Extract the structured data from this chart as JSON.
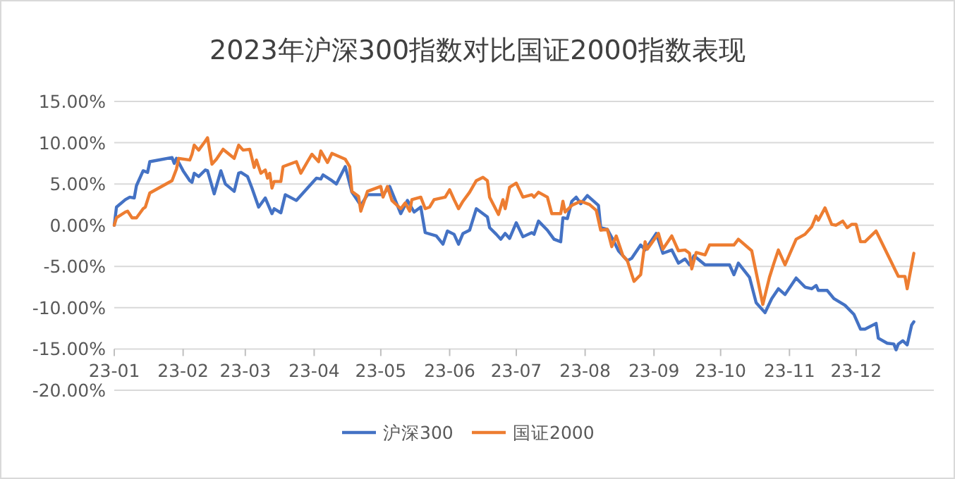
{
  "chart_data": {
    "type": "line",
    "title": "2023年沪深300指数对比国证2000指数表现",
    "xlim": [
      "2023-01-01",
      "2024-01-05"
    ],
    "xticks": [
      {
        "value": "2023-01-01",
        "label": "23-01"
      },
      {
        "value": "2023-02-01",
        "label": "23-02"
      },
      {
        "value": "2023-03-01",
        "label": "23-03"
      },
      {
        "value": "2023-04-01",
        "label": "23-04"
      },
      {
        "value": "2023-05-01",
        "label": "23-05"
      },
      {
        "value": "2023-06-01",
        "label": "23-06"
      },
      {
        "value": "2023-07-01",
        "label": "23-07"
      },
      {
        "value": "2023-08-01",
        "label": "23-08"
      },
      {
        "value": "2023-09-01",
        "label": "23-09"
      },
      {
        "value": "2023-10-01",
        "label": "23-10"
      },
      {
        "value": "2023-11-01",
        "label": "23-11"
      },
      {
        "value": "2023-12-01",
        "label": "23-12"
      }
    ],
    "ylim": [
      -20,
      15
    ],
    "yticks": [
      {
        "value": -20,
        "label": "-20.00%"
      },
      {
        "value": -15,
        "label": "-15.00%"
      },
      {
        "value": -10,
        "label": "-10.00%"
      },
      {
        "value": -5,
        "label": "-5.00%"
      },
      {
        "value": 0,
        "label": "0.00%"
      },
      {
        "value": 5,
        "label": "5.00%"
      },
      {
        "value": 10,
        "label": "10.00%"
      },
      {
        "value": 15,
        "label": "15.00%"
      }
    ],
    "grid": "y",
    "legend": "bottom",
    "marker": "none",
    "line_style": "solid",
    "series": [
      {
        "name": "沪深300",
        "color": "#4472c4",
        "x": [
          "2023-01-01",
          "2023-01-02",
          "2023-01-06",
          "2023-01-08",
          "2023-01-10",
          "2023-01-11",
          "2023-01-14",
          "2023-01-16",
          "2023-01-17",
          "2023-01-27",
          "2023-01-28",
          "2023-01-29",
          "2023-02-01",
          "2023-02-04",
          "2023-02-05",
          "2023-02-06",
          "2023-02-08",
          "2023-02-11",
          "2023-02-12",
          "2023-02-15",
          "2023-02-18",
          "2023-02-20",
          "2023-02-24",
          "2023-02-26",
          "2023-02-27",
          "2023-03-02",
          "2023-03-04",
          "2023-03-07",
          "2023-03-10",
          "2023-03-13",
          "2023-03-14",
          "2023-03-17",
          "2023-03-19",
          "2023-03-24",
          "2023-03-27",
          "2023-04-02",
          "2023-04-04",
          "2023-04-05",
          "2023-04-09",
          "2023-04-11",
          "2023-04-15",
          "2023-04-18",
          "2023-04-22",
          "2023-04-25",
          "2023-05-02",
          "2023-05-05",
          "2023-05-10",
          "2023-05-13",
          "2023-05-16",
          "2023-05-19",
          "2023-05-21",
          "2023-05-26",
          "2023-05-29",
          "2023-05-31",
          "2023-06-03",
          "2023-06-05",
          "2023-06-07",
          "2023-06-10",
          "2023-06-13",
          "2023-06-18",
          "2023-06-19",
          "2023-06-22",
          "2023-06-24",
          "2023-06-26",
          "2023-06-28",
          "2023-07-01",
          "2023-07-04",
          "2023-07-08",
          "2023-07-09",
          "2023-07-11",
          "2023-07-15",
          "2023-07-18",
          "2023-07-21",
          "2023-07-22",
          "2023-07-24",
          "2023-07-26",
          "2023-07-28",
          "2023-07-30",
          "2023-08-02",
          "2023-08-07",
          "2023-08-08",
          "2023-08-11",
          "2023-08-14",
          "2023-08-16",
          "2023-08-20",
          "2023-08-22",
          "2023-08-26",
          "2023-08-28",
          "2023-09-02",
          "2023-09-05",
          "2023-09-09",
          "2023-09-12",
          "2023-09-15",
          "2023-09-17",
          "2023-09-19",
          "2023-09-24",
          "2023-10-05",
          "2023-10-07",
          "2023-10-09",
          "2023-10-14",
          "2023-10-17",
          "2023-10-21",
          "2023-10-24",
          "2023-10-27",
          "2023-10-30",
          "2023-11-04",
          "2023-11-08",
          "2023-11-11",
          "2023-11-13",
          "2023-11-14",
          "2023-11-18",
          "2023-11-21",
          "2023-11-26",
          "2023-11-30",
          "2023-12-03",
          "2023-12-05",
          "2023-12-10",
          "2023-12-11",
          "2023-12-15",
          "2023-12-18",
          "2023-12-19",
          "2023-12-20",
          "2023-12-22",
          "2023-12-24",
          "2023-12-26",
          "2023-12-27"
        ],
        "values": [
          0,
          2.2,
          3.1,
          3.4,
          3.3,
          4.8,
          6.6,
          6.4,
          7.7,
          8.2,
          7.5,
          8.1,
          6.6,
          5.4,
          5.2,
          6.3,
          5.9,
          6.7,
          6.6,
          3.8,
          6.6,
          5.0,
          4.1,
          6.3,
          6.4,
          5.9,
          4.5,
          2.2,
          3.3,
          1.4,
          2.0,
          1.5,
          3.7,
          3.0,
          3.9,
          5.7,
          5.6,
          6.1,
          5.4,
          5.0,
          7.1,
          4.0,
          2.4,
          3.7,
          3.7,
          4.7,
          1.4,
          3.0,
          1.6,
          2.2,
          -0.9,
          -1.3,
          -2.3,
          -0.7,
          -1.1,
          -2.3,
          -1.0,
          -0.6,
          2.0,
          1.0,
          -0.3,
          -1.1,
          -1.7,
          -1.0,
          -1.6,
          0.3,
          -1.4,
          -0.9,
          -1.1,
          0.5,
          -0.6,
          -1.7,
          -2.0,
          0.9,
          0.8,
          2.9,
          3.4,
          2.6,
          3.6,
          2.4,
          -0.3,
          -0.5,
          -2.0,
          -3.1,
          -4.3,
          -4.0,
          -2.4,
          -3.0,
          -1.0,
          -3.4,
          -3.0,
          -4.6,
          -4.1,
          -4.8,
          -3.7,
          -4.8,
          -4.8,
          -6.0,
          -4.6,
          -6.3,
          -9.4,
          -10.6,
          -8.9,
          -7.7,
          -8.4,
          -6.4,
          -7.5,
          -7.7,
          -7.3,
          -7.9,
          -7.9,
          -8.9,
          -9.7,
          -10.8,
          -12.6,
          -12.6,
          -11.9,
          -13.7,
          -14.3,
          -14.4,
          -15.1,
          -14.4,
          -14.0,
          -14.5,
          -12.1,
          -11.7
        ]
      },
      {
        "name": "国证2000",
        "color": "#ed7d31",
        "x": [
          "2023-01-01",
          "2023-01-02",
          "2023-01-06",
          "2023-01-07",
          "2023-01-09",
          "2023-01-11",
          "2023-01-14",
          "2023-01-15",
          "2023-01-17",
          "2023-01-27",
          "2023-01-29",
          "2023-01-30",
          "2023-02-04",
          "2023-02-05",
          "2023-02-06",
          "2023-02-08",
          "2023-02-11",
          "2023-02-12",
          "2023-02-14",
          "2023-02-16",
          "2023-02-19",
          "2023-02-24",
          "2023-02-26",
          "2023-02-28",
          "2023-03-03",
          "2023-03-05",
          "2023-03-06",
          "2023-03-08",
          "2023-03-10",
          "2023-03-11",
          "2023-03-12",
          "2023-03-13",
          "2023-03-14",
          "2023-03-17",
          "2023-03-18",
          "2023-03-24",
          "2023-03-26",
          "2023-03-29",
          "2023-03-31",
          "2023-04-03",
          "2023-04-04",
          "2023-04-07",
          "2023-04-09",
          "2023-04-15",
          "2023-04-17",
          "2023-04-18",
          "2023-04-21",
          "2023-04-22",
          "2023-04-25",
          "2023-05-01",
          "2023-05-02",
          "2023-05-04",
          "2023-05-06",
          "2023-05-10",
          "2023-05-12",
          "2023-05-14",
          "2023-05-15",
          "2023-05-19",
          "2023-05-21",
          "2023-05-23",
          "2023-05-25",
          "2023-05-30",
          "2023-06-01",
          "2023-06-03",
          "2023-06-05",
          "2023-06-07",
          "2023-06-10",
          "2023-06-13",
          "2023-06-16",
          "2023-06-18",
          "2023-06-19",
          "2023-06-23",
          "2023-06-25",
          "2023-06-26",
          "2023-06-28",
          "2023-07-01",
          "2023-07-04",
          "2023-07-08",
          "2023-07-09",
          "2023-07-11",
          "2023-07-15",
          "2023-07-17",
          "2023-07-21",
          "2023-07-22",
          "2023-07-23",
          "2023-07-26",
          "2023-07-30",
          "2023-08-03",
          "2023-08-06",
          "2023-08-08",
          "2023-08-11",
          "2023-08-13",
          "2023-08-15",
          "2023-08-18",
          "2023-08-20",
          "2023-08-23",
          "2023-08-26",
          "2023-08-28",
          "2023-08-29",
          "2023-09-03",
          "2023-09-05",
          "2023-09-09",
          "2023-09-12",
          "2023-09-15",
          "2023-09-17",
          "2023-09-18",
          "2023-09-20",
          "2023-09-24",
          "2023-09-26",
          "2023-10-07",
          "2023-10-09",
          "2023-10-15",
          "2023-10-20",
          "2023-10-23",
          "2023-10-25",
          "2023-10-27",
          "2023-10-30",
          "2023-11-04",
          "2023-11-08",
          "2023-11-11",
          "2023-11-13",
          "2023-11-14",
          "2023-11-17",
          "2023-11-20",
          "2023-11-22",
          "2023-11-25",
          "2023-11-27",
          "2023-11-29",
          "2023-12-01",
          "2023-12-03",
          "2023-12-05",
          "2023-12-10",
          "2023-12-16",
          "2023-12-18",
          "2023-12-20",
          "2023-12-23",
          "2023-12-24",
          "2023-12-27"
        ],
        "values": [
          0,
          0.9,
          1.6,
          1.7,
          0.9,
          0.9,
          2.0,
          2.2,
          3.9,
          5.4,
          6.8,
          8.1,
          7.9,
          8.6,
          9.7,
          9.1,
          10.2,
          10.6,
          7.4,
          8.0,
          9.2,
          8.1,
          9.7,
          9.1,
          9.2,
          7.0,
          7.9,
          6.3,
          6.7,
          5.7,
          6.3,
          4.5,
          5.3,
          5.3,
          7.1,
          7.7,
          6.3,
          7.7,
          8.6,
          7.7,
          9.0,
          7.6,
          8.7,
          8.0,
          7.1,
          4.1,
          3.5,
          1.7,
          4.1,
          4.7,
          3.4,
          4.7,
          3.0,
          2.0,
          2.7,
          1.7,
          3.1,
          3.4,
          2.0,
          2.2,
          3.1,
          3.4,
          4.3,
          3.1,
          2.0,
          2.9,
          4.0,
          5.4,
          5.8,
          5.4,
          3.4,
          1.3,
          3.1,
          2.0,
          4.6,
          5.1,
          3.4,
          3.7,
          3.4,
          4.0,
          3.4,
          1.4,
          1.4,
          2.9,
          1.6,
          2.4,
          2.9,
          2.5,
          1.8,
          -0.6,
          -0.5,
          -2.6,
          -1.3,
          -3.7,
          -4.3,
          -6.8,
          -6.0,
          -2.0,
          -2.9,
          -1.0,
          -2.9,
          -1.3,
          -3.1,
          -3.0,
          -3.4,
          -5.3,
          -3.3,
          -3.6,
          -2.4,
          -2.4,
          -1.7,
          -3.1,
          -9.6,
          -6.3,
          -4.6,
          -3.0,
          -4.8,
          -1.7,
          -1.1,
          -0.2,
          1.1,
          0.6,
          2.1,
          0.1,
          0,
          0.5,
          -0.3,
          0.1,
          0.1,
          -2.0,
          -2.0,
          -0.7,
          -4.0,
          -5.1,
          -6.2,
          -6.2,
          -7.7,
          -3.4
        ]
      }
    ]
  }
}
